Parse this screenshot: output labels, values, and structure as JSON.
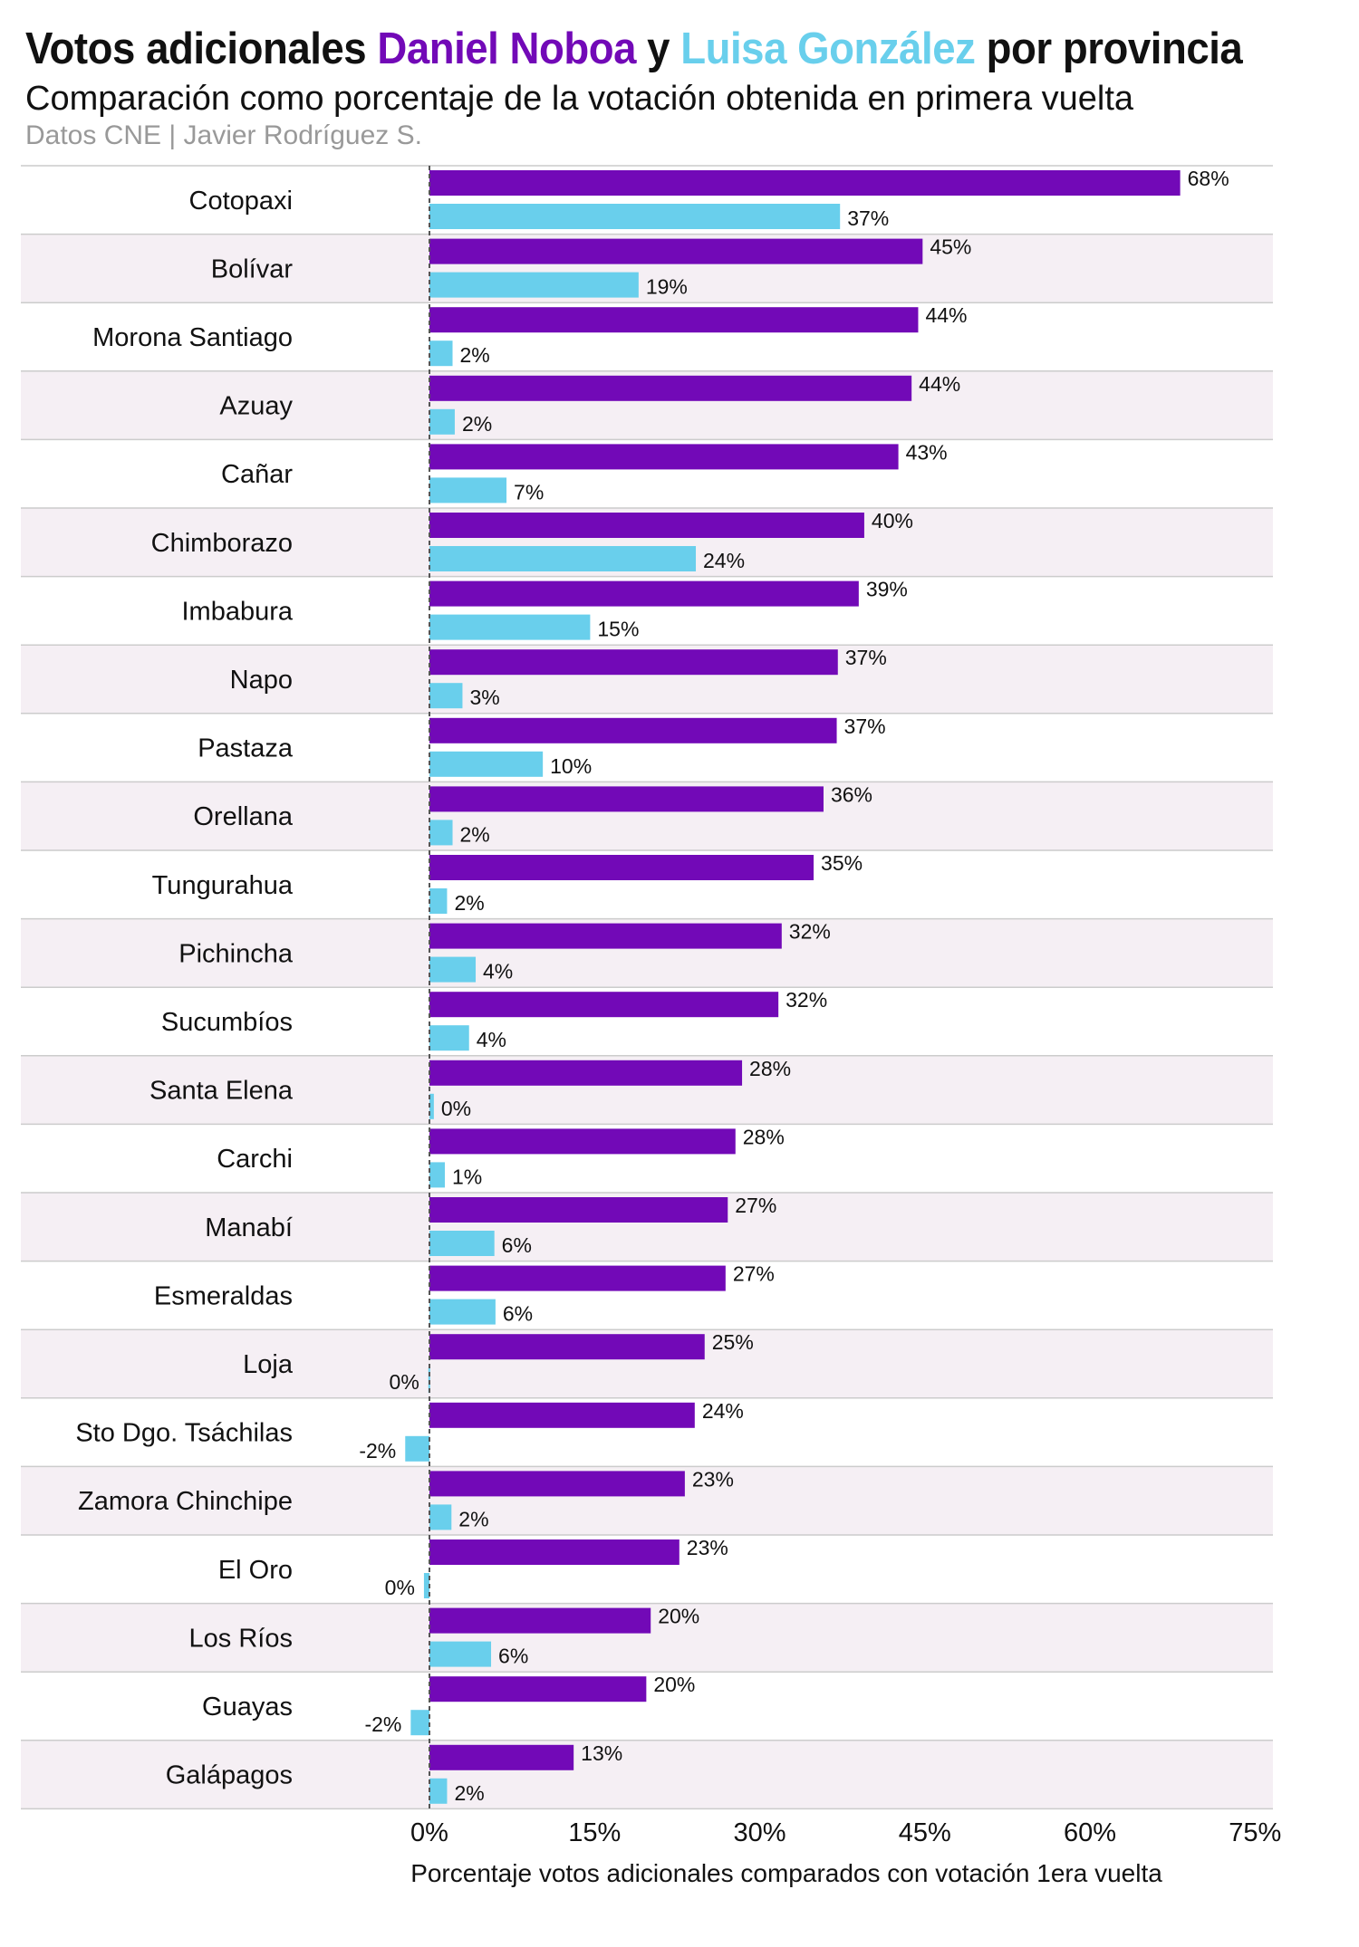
{
  "header": {
    "title_prefix": "Votos adicionales ",
    "title_noboa": "Daniel Noboa",
    "title_middle": " y ",
    "title_gonzalez": "Luisa González",
    "title_suffix": " por provincia",
    "subtitle": "Comparación como porcentaje de la votación obtenida en primera vuelta",
    "source": "Datos CNE | Javier Rodríguez S."
  },
  "colors": {
    "noboa": "#7209b7",
    "gonzalez": "#69cfec",
    "band": "#f5eff4",
    "text": "#111111",
    "muted": "#999999"
  },
  "chart_data": {
    "type": "bar",
    "orientation": "horizontal",
    "title": "Votos adicionales Daniel Noboa y Luisa González por provincia",
    "xlabel": "Porcentaje votos adicionales comparados con votación 1era vuelta",
    "ylabel": "",
    "xlim": [
      0,
      75
    ],
    "xticks": [
      0,
      15,
      30,
      45,
      60,
      75
    ],
    "xtick_labels": [
      "0%",
      "15%",
      "30%",
      "45%",
      "60%",
      "75%"
    ],
    "categories": [
      "Cotopaxi",
      "Bolívar",
      "Morona Santiago",
      "Azuay",
      "Cañar",
      "Chimborazo",
      "Imbabura",
      "Napo",
      "Pastaza",
      "Orellana",
      "Tungurahua",
      "Pichincha",
      "Sucumbíos",
      "Santa Elena",
      "Carchi",
      "Manabí",
      "Esmeraldas",
      "Loja",
      "Sto Dgo. Tsáchilas",
      "Zamora Chinchipe",
      "El Oro",
      "Los Ríos",
      "Guayas",
      "Galápagos"
    ],
    "series": [
      {
        "name": "Daniel Noboa",
        "color": "#7209b7",
        "values": [
          68.2,
          44.8,
          44.4,
          43.8,
          42.6,
          39.5,
          39.0,
          37.1,
          37.0,
          35.8,
          34.9,
          32.0,
          31.7,
          28.4,
          27.8,
          27.1,
          26.9,
          25.0,
          24.1,
          23.2,
          22.7,
          20.1,
          19.7,
          13.1
        ],
        "labels": [
          "68%",
          "45%",
          "44%",
          "44%",
          "43%",
          "40%",
          "39%",
          "37%",
          "37%",
          "36%",
          "35%",
          "32%",
          "32%",
          "28%",
          "28%",
          "27%",
          "27%",
          "25%",
          "24%",
          "23%",
          "23%",
          "20%",
          "20%",
          "13%"
        ]
      },
      {
        "name": "Luisa González",
        "color": "#69cfec",
        "values": [
          37.3,
          19.0,
          2.1,
          2.3,
          7.0,
          24.2,
          14.6,
          3.0,
          10.3,
          2.1,
          1.6,
          4.2,
          3.6,
          0.4,
          1.4,
          5.9,
          6.0,
          -0.1,
          -2.2,
          2.0,
          -0.5,
          5.6,
          -1.7,
          1.6
        ],
        "labels": [
          "37%",
          "19%",
          "2%",
          "2%",
          "7%",
          "24%",
          "15%",
          "3%",
          "10%",
          "2%",
          "2%",
          "4%",
          "4%",
          "0%",
          "1%",
          "6%",
          "6%",
          "0%",
          "-2%",
          "2%",
          "0%",
          "6%",
          "-2%",
          "2%"
        ]
      }
    ]
  }
}
